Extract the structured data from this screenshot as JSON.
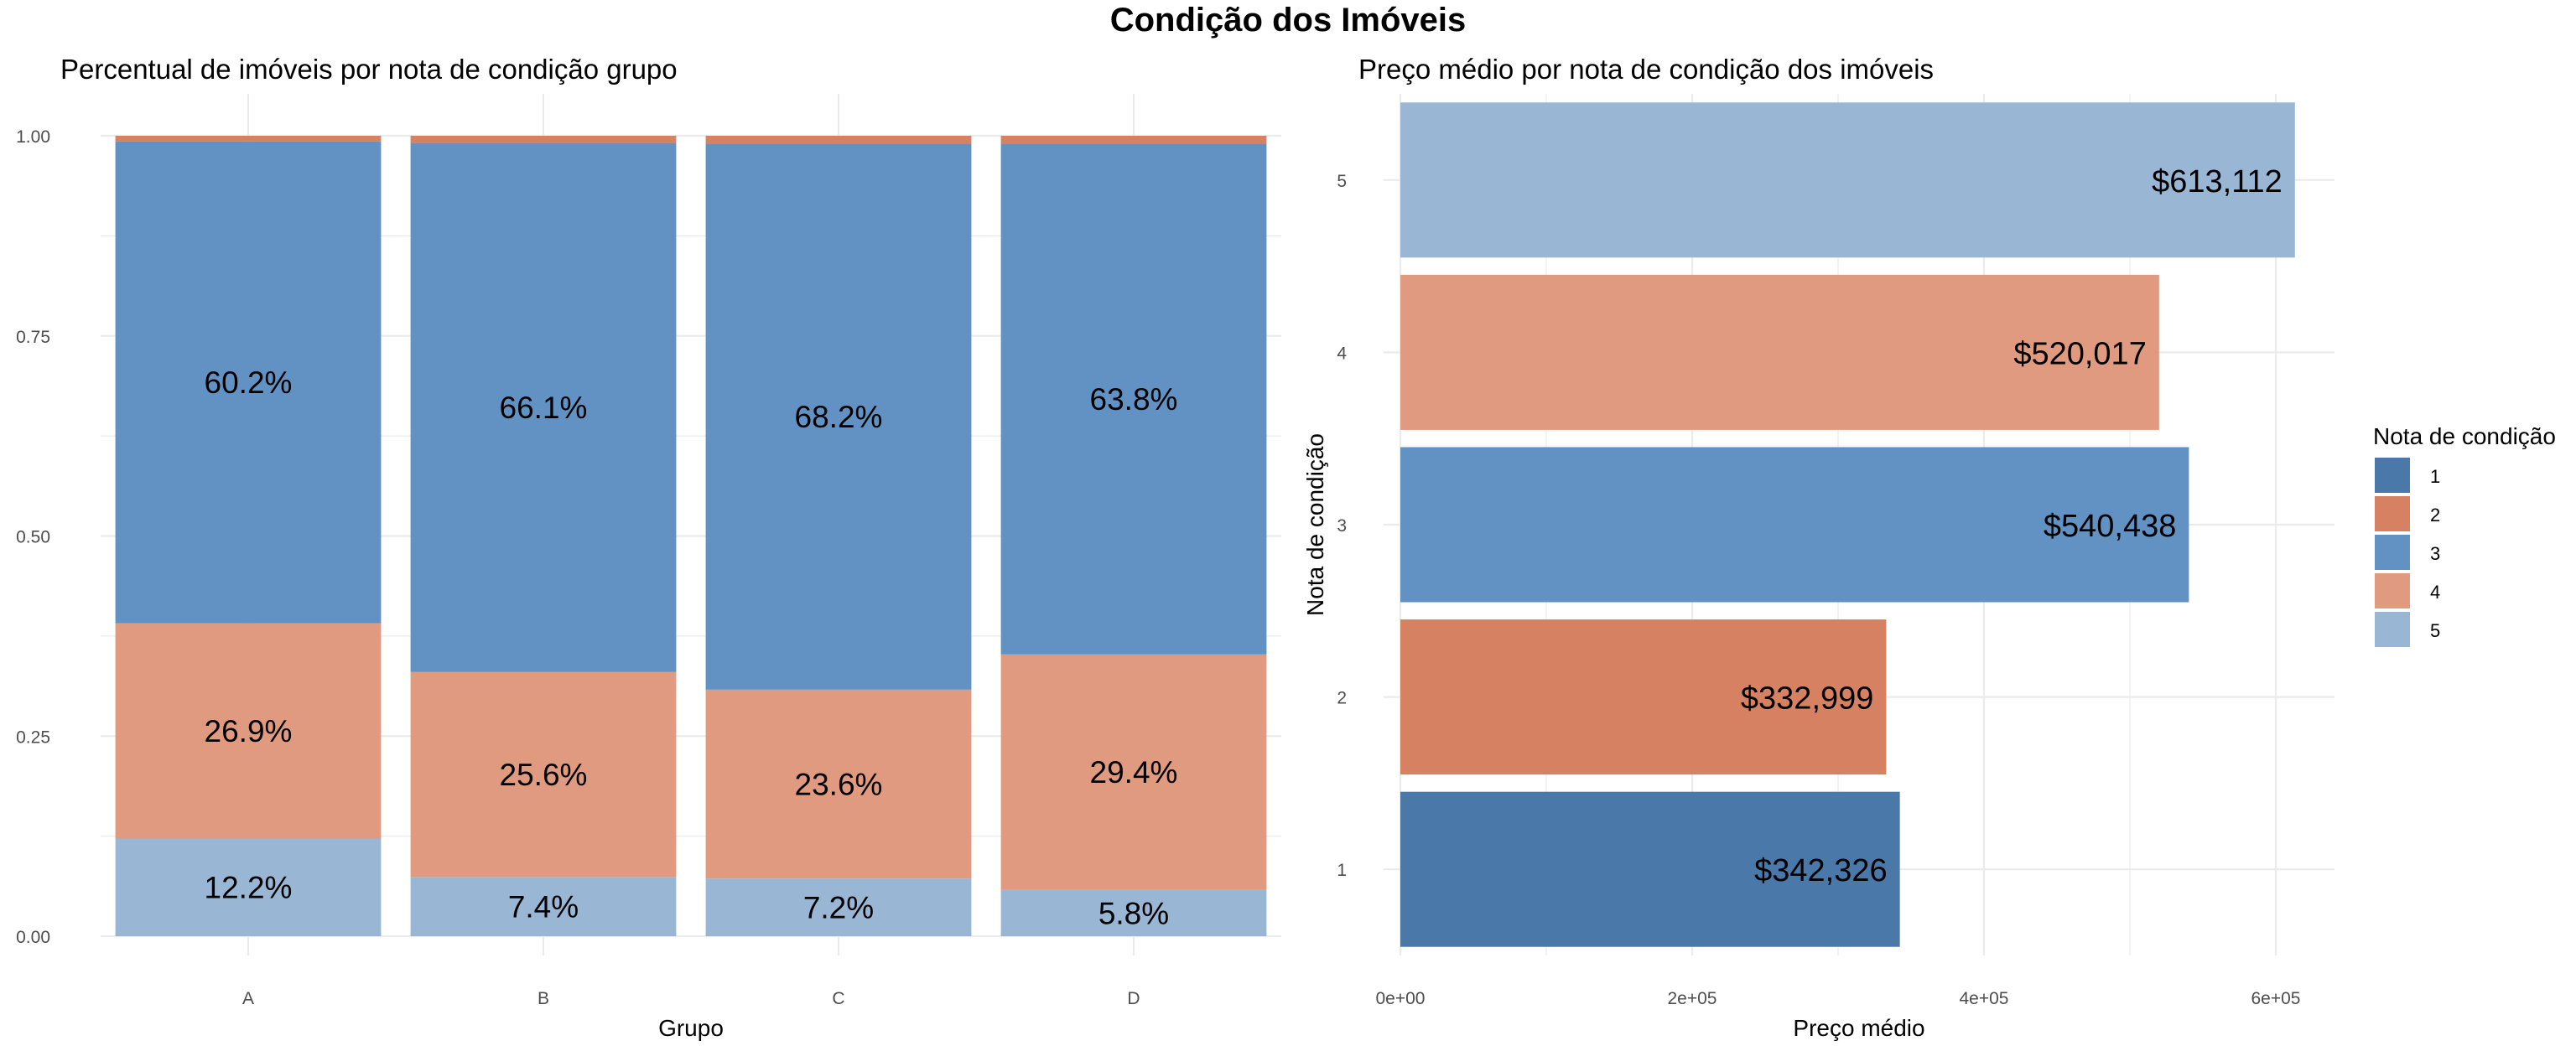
{
  "main_title": "Condição dos Imóveis",
  "colors": {
    "1": "#4A78A8",
    "2": "#D68262",
    "3": "#6192C3",
    "4": "#E09A80",
    "5": "#99B6D4",
    "grid": "#EBEBEB"
  },
  "chart_data": [
    {
      "type": "bar",
      "stacked": true,
      "title": "Percentual de imóveis por nota de condição grupo",
      "xlabel": "Grupo",
      "ylabel": "",
      "categories": [
        "A",
        "B",
        "C",
        "D"
      ],
      "ylim": [
        0,
        1
      ],
      "yticks": [
        0.0,
        0.25,
        0.5,
        0.75,
        1.0
      ],
      "ytick_labels": [
        "0.00",
        "0.25",
        "0.50",
        "0.75",
        "1.00"
      ],
      "series": [
        {
          "key": "5",
          "values": [
            0.122,
            0.074,
            0.072,
            0.058
          ],
          "labels": [
            "12.2%",
            "7.4%",
            "7.2%",
            "5.8%"
          ]
        },
        {
          "key": "4",
          "values": [
            0.269,
            0.256,
            0.236,
            0.294
          ],
          "labels": [
            "26.9%",
            "25.6%",
            "23.6%",
            "29.4%"
          ]
        },
        {
          "key": "3",
          "values": [
            0.602,
            0.661,
            0.682,
            0.638
          ],
          "labels": [
            "60.2%",
            "66.1%",
            "68.2%",
            "63.8%"
          ]
        },
        {
          "key": "2",
          "values": [
            0.007,
            0.009,
            0.01,
            0.01
          ],
          "labels": [
            "",
            "",
            "",
            ""
          ]
        }
      ],
      "grid": true
    },
    {
      "type": "bar",
      "orientation": "horizontal",
      "title": "Preço médio por nota de condição dos imóveis",
      "xlabel": "Preço médio",
      "ylabel": "Nota de condição",
      "categories": [
        "1",
        "2",
        "3",
        "4",
        "5"
      ],
      "values": [
        342326,
        332999,
        540438,
        520017,
        613112
      ],
      "labels": [
        "$342,326",
        "$332,999",
        "$540,438",
        "$520,017",
        "$613,112"
      ],
      "xlim": [
        0,
        640000
      ],
      "xticks": [
        0,
        200000,
        400000,
        600000
      ],
      "xtick_labels": [
        "0e+00",
        "2e+05",
        "4e+05",
        "6e+05"
      ],
      "grid": true
    }
  ],
  "legend": {
    "title": "Nota de condição",
    "placement": "right",
    "items": [
      {
        "key": "1",
        "label": "1"
      },
      {
        "key": "2",
        "label": "2"
      },
      {
        "key": "3",
        "label": "3"
      },
      {
        "key": "4",
        "label": "4"
      },
      {
        "key": "5",
        "label": "5"
      }
    ]
  }
}
